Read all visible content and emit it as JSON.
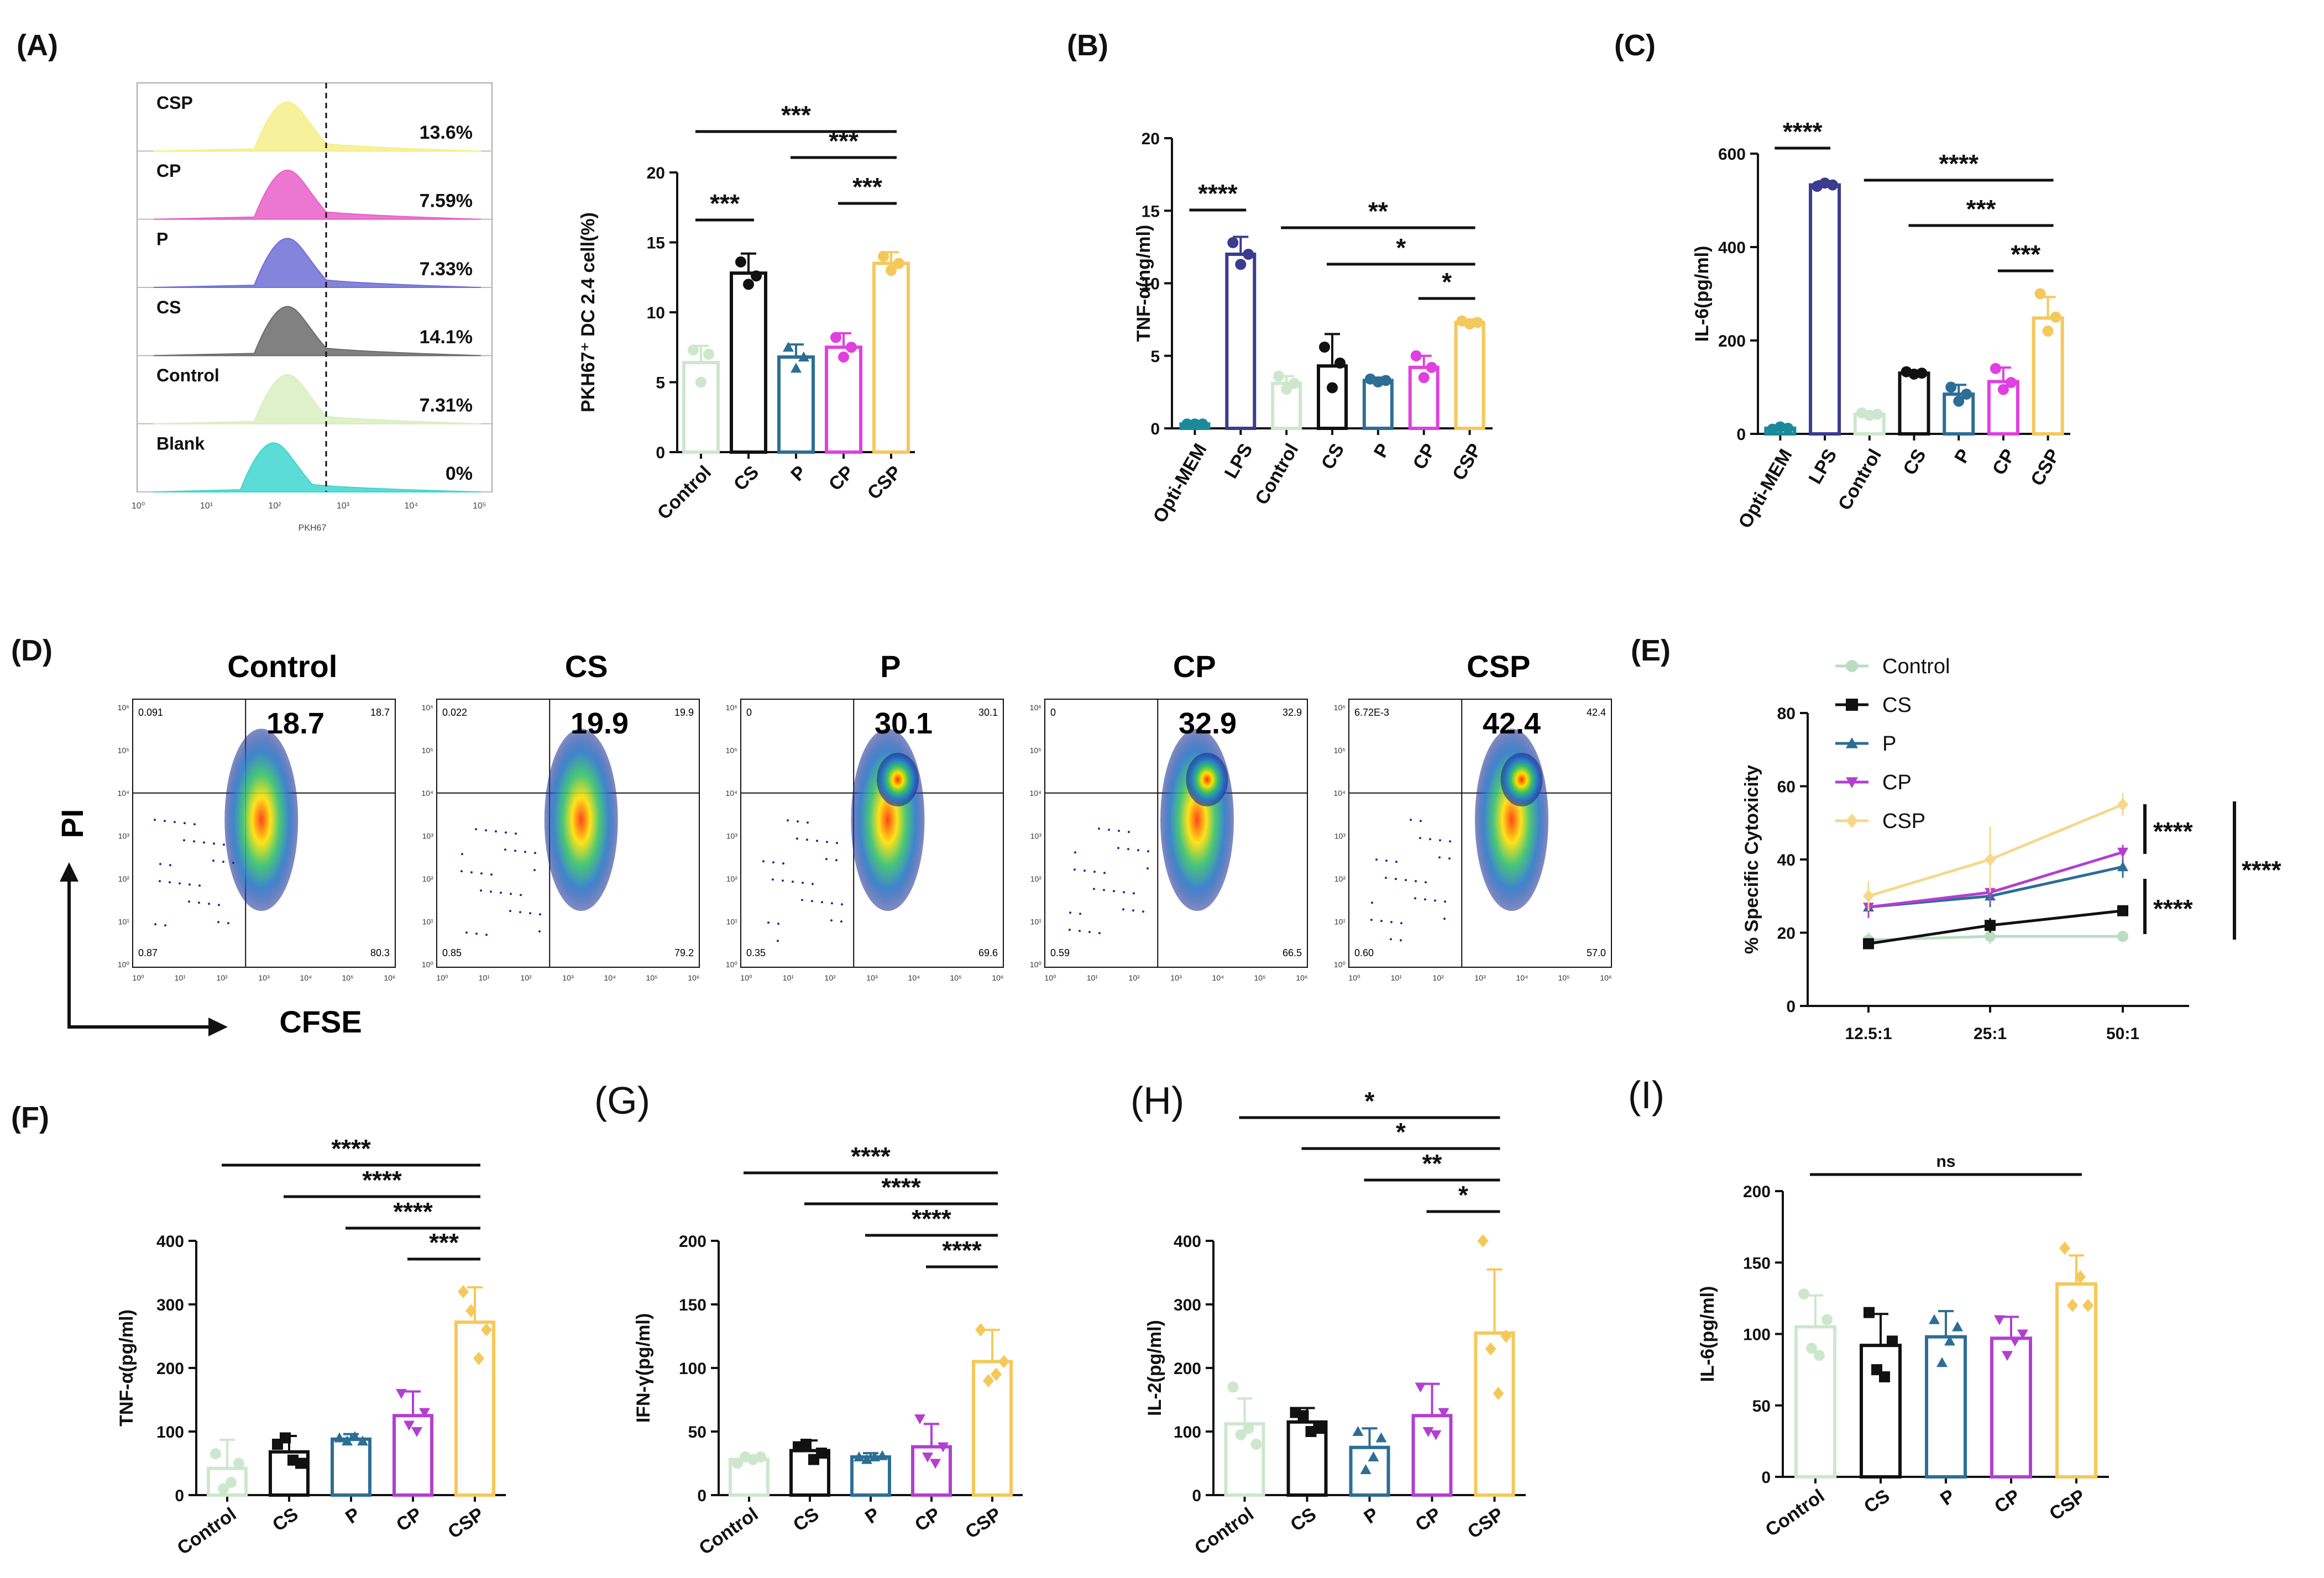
{
  "figure": {
    "title": ""
  },
  "panel_labels": {
    "A": "(A)",
    "B": "(B)",
    "C": "(C)",
    "D": "(D)",
    "E": "(E)",
    "F": "(F)",
    "G": "(G)",
    "H": "(H)",
    "I": "(I)"
  },
  "panelA_hist": {
    "rows": [
      {
        "label": "CSP",
        "percent": "13.6%",
        "color": "#f5ef8a"
      },
      {
        "label": "CP",
        "percent": "7.59%",
        "color": "#e85fc9"
      },
      {
        "label": "P",
        "percent": "7.33%",
        "color": "#6f6fd6"
      },
      {
        "label": "CS",
        "percent": "14.1%",
        "color": "#6b6b6b"
      },
      {
        "label": "Control",
        "percent": "7.31%",
        "color": "#d8efc0"
      },
      {
        "label": "Blank",
        "percent": "0%",
        "color": "#3fd6d0"
      }
    ],
    "x_ticks": [
      "10⁰",
      "10¹",
      "10²",
      "10³",
      "10⁴",
      "10⁵"
    ],
    "x_axis_label": "PKH67"
  },
  "flow_D": {
    "x_axis_label": "CFSE",
    "y_axis_label": "PI",
    "axis_ticks": [
      "10⁰",
      "10¹",
      "10²",
      "10³",
      "10⁴",
      "10⁵",
      "10⁶"
    ],
    "plots": [
      {
        "title": "Control",
        "big": "18.7",
        "ur": "18.7",
        "ul": "0.091",
        "ll": "0.87",
        "lr": "80.3"
      },
      {
        "title": "CS",
        "big": "19.9",
        "ur": "19.9",
        "ul": "0.022",
        "ll": "0.85",
        "lr": "79.2"
      },
      {
        "title": "P",
        "big": "30.1",
        "ur": "30.1",
        "ul": "0",
        "ll": "0.35",
        "lr": "69.6"
      },
      {
        "title": "CP",
        "big": "32.9",
        "ur": "32.9",
        "ul": "0",
        "ll": "0.59",
        "lr": "66.5"
      },
      {
        "title": "CSP",
        "big": "42.4",
        "ur": "42.4",
        "ul": "6.72E-3",
        "ll": "0.60",
        "lr": "57.0"
      }
    ]
  },
  "chart_data": [
    {
      "id": "A",
      "type": "bar",
      "ylabel": "PKH67⁺ DC 2.4 cell(%)",
      "ylim": [
        0,
        20
      ],
      "yticks": [
        0,
        5,
        10,
        15,
        20
      ],
      "categories": [
        "Control",
        "CS",
        "P",
        "CP",
        "CSP"
      ],
      "colors": [
        "#cde7cd",
        "#111111",
        "#2c6e95",
        "#e040e0",
        "#f5c85a"
      ],
      "values": [
        6.4,
        12.8,
        6.8,
        7.5,
        13.5
      ],
      "errors": [
        1.2,
        1.4,
        0.9,
        1.0,
        0.8
      ],
      "points": [
        [
          7.3,
          5.0,
          7.0
        ],
        [
          13.6,
          12.0,
          12.6
        ],
        [
          7.5,
          6.0,
          6.8
        ],
        [
          8.2,
          6.8,
          7.5
        ],
        [
          14.0,
          13.0,
          13.5
        ]
      ],
      "markers": [
        "circle",
        "circle",
        "triangle",
        "circle",
        "circle"
      ],
      "significance": [
        {
          "from": 0,
          "to": 4,
          "label": "***"
        },
        {
          "from": 2,
          "to": 4,
          "label": "***"
        },
        {
          "from": 0,
          "to": 1,
          "label": "***"
        },
        {
          "from": 3,
          "to": 4,
          "label": "***"
        }
      ]
    },
    {
      "id": "B",
      "type": "bar",
      "ylabel": "TNF-α(ng/ml)",
      "ylim": [
        0,
        20
      ],
      "yticks": [
        0,
        5,
        10,
        15,
        20
      ],
      "categories": [
        "Opti-MEM",
        "LPS",
        "Control",
        "CS",
        "P",
        "CP",
        "CSP"
      ],
      "colors": [
        "#1a8a9a",
        "#3b3b8f",
        "#cde7cd",
        "#111111",
        "#2c6e95",
        "#e040e0",
        "#f5c85a"
      ],
      "values": [
        0.3,
        12.0,
        3.1,
        4.3,
        3.3,
        4.2,
        7.3
      ],
      "errors": [
        0.1,
        1.2,
        0.5,
        2.2,
        0.2,
        0.8,
        0.2
      ],
      "points": [
        [
          0.3,
          0.3,
          0.3
        ],
        [
          12.8,
          11.3,
          12.0
        ],
        [
          3.6,
          2.7,
          3.1
        ],
        [
          5.6,
          2.8,
          4.5
        ],
        [
          3.4,
          3.2,
          3.3
        ],
        [
          5.0,
          3.5,
          4.2
        ],
        [
          7.4,
          7.2,
          7.3
        ]
      ],
      "markers": [
        "circle",
        "circle",
        "circle",
        "circle",
        "circle",
        "circle",
        "circle"
      ],
      "significance": [
        {
          "from": 0,
          "to": 1,
          "label": "****"
        },
        {
          "from": 2,
          "to": 6,
          "label": "**"
        },
        {
          "from": 3,
          "to": 6,
          "label": "*"
        },
        {
          "from": 5,
          "to": 6,
          "label": "*"
        }
      ]
    },
    {
      "id": "C",
      "type": "bar",
      "ylabel": "IL-6(pg/ml)",
      "ylim": [
        0,
        600
      ],
      "yticks": [
        0,
        200,
        400,
        600
      ],
      "categories": [
        "Opti-MEM",
        "LPS",
        "Control",
        "CS",
        "P",
        "CP",
        "CSP"
      ],
      "colors": [
        "#1a8a9a",
        "#3b3b8f",
        "#cde7cd",
        "#111111",
        "#2c6e95",
        "#e040e0",
        "#f5c85a"
      ],
      "values": [
        12,
        533,
        42,
        130,
        85,
        112,
        248
      ],
      "errors": [
        6,
        8,
        5,
        5,
        20,
        30,
        45
      ],
      "points": [
        [
          10,
          15,
          12
        ],
        [
          530,
          537,
          533
        ],
        [
          45,
          40,
          42
        ],
        [
          133,
          128,
          130
        ],
        [
          100,
          70,
          85
        ],
        [
          140,
          95,
          110
        ],
        [
          300,
          220,
          250
        ]
      ],
      "markers": [
        "circle",
        "circle",
        "circle",
        "circle",
        "circle",
        "circle",
        "circle"
      ],
      "significance": [
        {
          "from": 0,
          "to": 1,
          "label": "****"
        },
        {
          "from": 2,
          "to": 6,
          "label": "****"
        },
        {
          "from": 3,
          "to": 6,
          "label": "***"
        },
        {
          "from": 5,
          "to": 6,
          "label": "***"
        }
      ]
    },
    {
      "id": "E",
      "type": "line",
      "ylabel": "% Specific Cytoxicity",
      "ylim": [
        0,
        80
      ],
      "yticks": [
        0,
        20,
        40,
        60,
        80
      ],
      "x": [
        "12.5:1",
        "25:1",
        "50:1"
      ],
      "series": [
        {
          "name": "Control",
          "color": "#b9dcc3",
          "marker": "circle",
          "values": [
            18,
            19,
            19
          ],
          "errors": [
            2,
            2,
            1
          ]
        },
        {
          "name": "CS",
          "color": "#111111",
          "marker": "square",
          "values": [
            17,
            22,
            26
          ],
          "errors": [
            1,
            2,
            1
          ]
        },
        {
          "name": "P",
          "color": "#2c6e95",
          "marker": "triangle",
          "values": [
            27,
            30,
            38
          ],
          "errors": [
            3,
            3,
            3
          ]
        },
        {
          "name": "CP",
          "color": "#b23fd1",
          "marker": "triangle-down",
          "values": [
            27,
            31,
            42
          ],
          "errors": [
            3,
            3,
            2
          ]
        },
        {
          "name": "CSP",
          "color": "#f5d88a",
          "marker": "diamond",
          "values": [
            30,
            40,
            55
          ],
          "errors": [
            4,
            9,
            3
          ]
        }
      ],
      "significance": [
        {
          "label": "****"
        },
        {
          "label": "****"
        },
        {
          "label": "****"
        }
      ]
    },
    {
      "id": "F",
      "type": "bar",
      "ylabel": "TNF-α(pg/ml)",
      "ylim": [
        0,
        400
      ],
      "yticks": [
        0,
        100,
        200,
        300,
        400
      ],
      "categories": [
        "Control",
        "CS",
        "P",
        "CP",
        "CSP"
      ],
      "colors": [
        "#cde7cd",
        "#111111",
        "#2c6e95",
        "#b23fd1",
        "#f5c85a"
      ],
      "values": [
        42,
        68,
        88,
        125,
        272
      ],
      "errors": [
        45,
        25,
        8,
        38,
        55
      ],
      "points": [
        [
          65,
          10,
          20,
          50
        ],
        [
          80,
          90,
          55,
          50
        ],
        [
          90,
          85,
          92,
          85
        ],
        [
          160,
          110,
          100,
          130
        ],
        [
          320,
          290,
          215,
          260
        ]
      ],
      "markers": [
        "circle",
        "square",
        "triangle",
        "triangle-down",
        "diamond"
      ],
      "significance": [
        {
          "from": 0,
          "to": 4,
          "label": "****"
        },
        {
          "from": 1,
          "to": 4,
          "label": "****"
        },
        {
          "from": 2,
          "to": 4,
          "label": "****"
        },
        {
          "from": 3,
          "to": 4,
          "label": "***"
        }
      ]
    },
    {
      "id": "G",
      "type": "bar",
      "ylabel": "IFN-γ(pg/ml)",
      "ylim": [
        0,
        200
      ],
      "yticks": [
        0,
        50,
        100,
        150,
        200
      ],
      "categories": [
        "Control",
        "CS",
        "P",
        "CP",
        "CSP"
      ],
      "colors": [
        "#cde7cd",
        "#111111",
        "#2c6e95",
        "#b23fd1",
        "#f5c85a"
      ],
      "values": [
        28,
        35,
        30,
        38,
        105
      ],
      "errors": [
        3,
        8,
        3,
        18,
        25
      ],
      "points": [
        [
          25,
          30,
          28,
          30
        ],
        [
          38,
          40,
          28,
          33
        ],
        [
          30,
          28,
          30,
          31
        ],
        [
          60,
          30,
          25,
          38
        ],
        [
          130,
          90,
          95,
          105
        ]
      ],
      "markers": [
        "circle",
        "square",
        "triangle",
        "triangle-down",
        "diamond"
      ],
      "significance": [
        {
          "from": 0,
          "to": 4,
          "label": "****"
        },
        {
          "from": 1,
          "to": 4,
          "label": "****"
        },
        {
          "from": 2,
          "to": 4,
          "label": "****"
        },
        {
          "from": 3,
          "to": 4,
          "label": "****"
        }
      ]
    },
    {
      "id": "H",
      "type": "bar",
      "ylabel": "IL-2(pg/ml)",
      "ylim": [
        0,
        400
      ],
      "yticks": [
        0,
        100,
        200,
        300,
        400
      ],
      "categories": [
        "Control",
        "CS",
        "P",
        "CP",
        "CSP"
      ],
      "colors": [
        "#cde7cd",
        "#111111",
        "#2c6e95",
        "#b23fd1",
        "#f5c85a"
      ],
      "values": [
        112,
        115,
        75,
        125,
        255
      ],
      "errors": [
        40,
        22,
        30,
        50,
        100
      ],
      "points": [
        [
          170,
          95,
          105,
          80
        ],
        [
          130,
          125,
          100,
          105
        ],
        [
          100,
          40,
          60,
          90
        ],
        [
          170,
          100,
          95,
          130
        ],
        [
          400,
          230,
          160,
          250
        ]
      ],
      "markers": [
        "circle",
        "square",
        "triangle",
        "triangle-down",
        "diamond"
      ],
      "significance": [
        {
          "from": 0,
          "to": 4,
          "label": "*"
        },
        {
          "from": 1,
          "to": 4,
          "label": "*"
        },
        {
          "from": 2,
          "to": 4,
          "label": "**"
        },
        {
          "from": 3,
          "to": 4,
          "label": "*"
        }
      ]
    },
    {
      "id": "I",
      "type": "bar",
      "ylabel": "IL-6(pg/ml)",
      "ylim": [
        0,
        200
      ],
      "yticks": [
        0,
        50,
        100,
        150,
        200
      ],
      "categories": [
        "Control",
        "CS",
        "P",
        "CP",
        "CSP"
      ],
      "colors": [
        "#cde7cd",
        "#111111",
        "#2c6e95",
        "#b23fd1",
        "#f5c85a"
      ],
      "values": [
        105,
        92,
        98,
        97,
        135
      ],
      "errors": [
        22,
        22,
        18,
        15,
        20
      ],
      "points": [
        [
          128,
          90,
          85,
          110
        ],
        [
          115,
          75,
          70,
          95
        ],
        [
          110,
          80,
          95,
          105
        ],
        [
          110,
          85,
          95,
          100
        ],
        [
          160,
          120,
          140,
          120
        ]
      ],
      "markers": [
        "circle",
        "square",
        "triangle",
        "triangle-down",
        "diamond"
      ],
      "significance": [
        {
          "from": 0,
          "to": 4,
          "label": "ns"
        }
      ]
    }
  ]
}
